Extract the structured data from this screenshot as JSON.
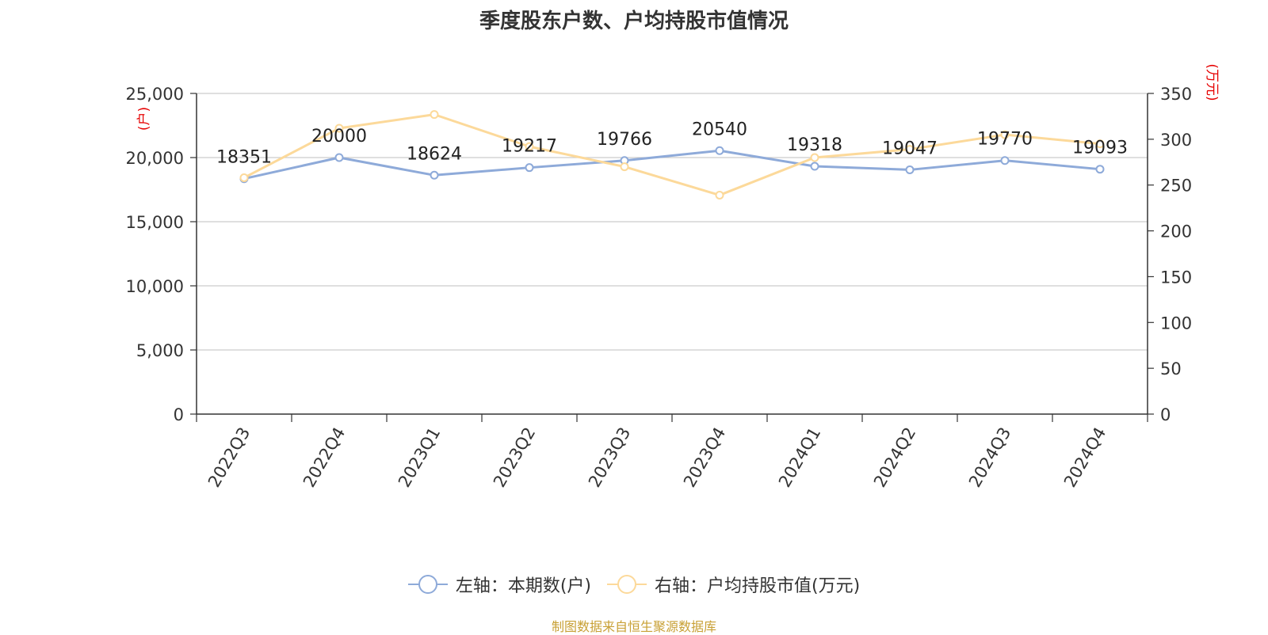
{
  "title": "季度股东户数、户均持股市值情况",
  "legend": [
    {
      "label": "左轴：本期数(户)",
      "color": "#8eaad9"
    },
    {
      "label": "右轴：户均持股市值(万元)",
      "color": "#fcd99a"
    }
  ],
  "source_note": "制图数据来自恒生聚源数据库",
  "chart_data": {
    "type": "line",
    "categories": [
      "2022Q3",
      "2022Q4",
      "2023Q1",
      "2023Q2",
      "2023Q3",
      "2023Q4",
      "2024Q1",
      "2024Q2",
      "2024Q3",
      "2024Q4"
    ],
    "left_axis": {
      "unit_label": "(户)",
      "ylim": [
        0,
        25000
      ],
      "ticks": [
        0,
        5000,
        10000,
        15000,
        20000,
        25000
      ],
      "tick_labels": [
        "0",
        "5,000",
        "10,000",
        "15,000",
        "20,000",
        "25,000"
      ],
      "unit_color": "#e60000"
    },
    "right_axis": {
      "unit_label": "(万元)",
      "ylim": [
        0,
        350
      ],
      "ticks": [
        0,
        50,
        100,
        150,
        200,
        250,
        300,
        350
      ],
      "tick_labels": [
        "0",
        "50",
        "100",
        "150",
        "200",
        "250",
        "300",
        "350"
      ],
      "unit_color": "#e60000"
    },
    "grid": true,
    "series": [
      {
        "name": "左轴：本期数(户)",
        "axis": "left",
        "color": "#8eaad9",
        "values": [
          18351,
          20000,
          18624,
          19217,
          19766,
          20540,
          19318,
          19047,
          19770,
          19093
        ],
        "data_labels": [
          "18351",
          "20000",
          "18624",
          "19217",
          "19766",
          "20540",
          "19318",
          "19047",
          "19770",
          "19093"
        ]
      },
      {
        "name": "右轴：户均持股市值(万元)",
        "axis": "right",
        "color": "#fcd99a",
        "values": [
          258,
          312,
          327,
          292,
          270,
          239,
          280,
          289,
          305,
          295
        ]
      }
    ]
  }
}
